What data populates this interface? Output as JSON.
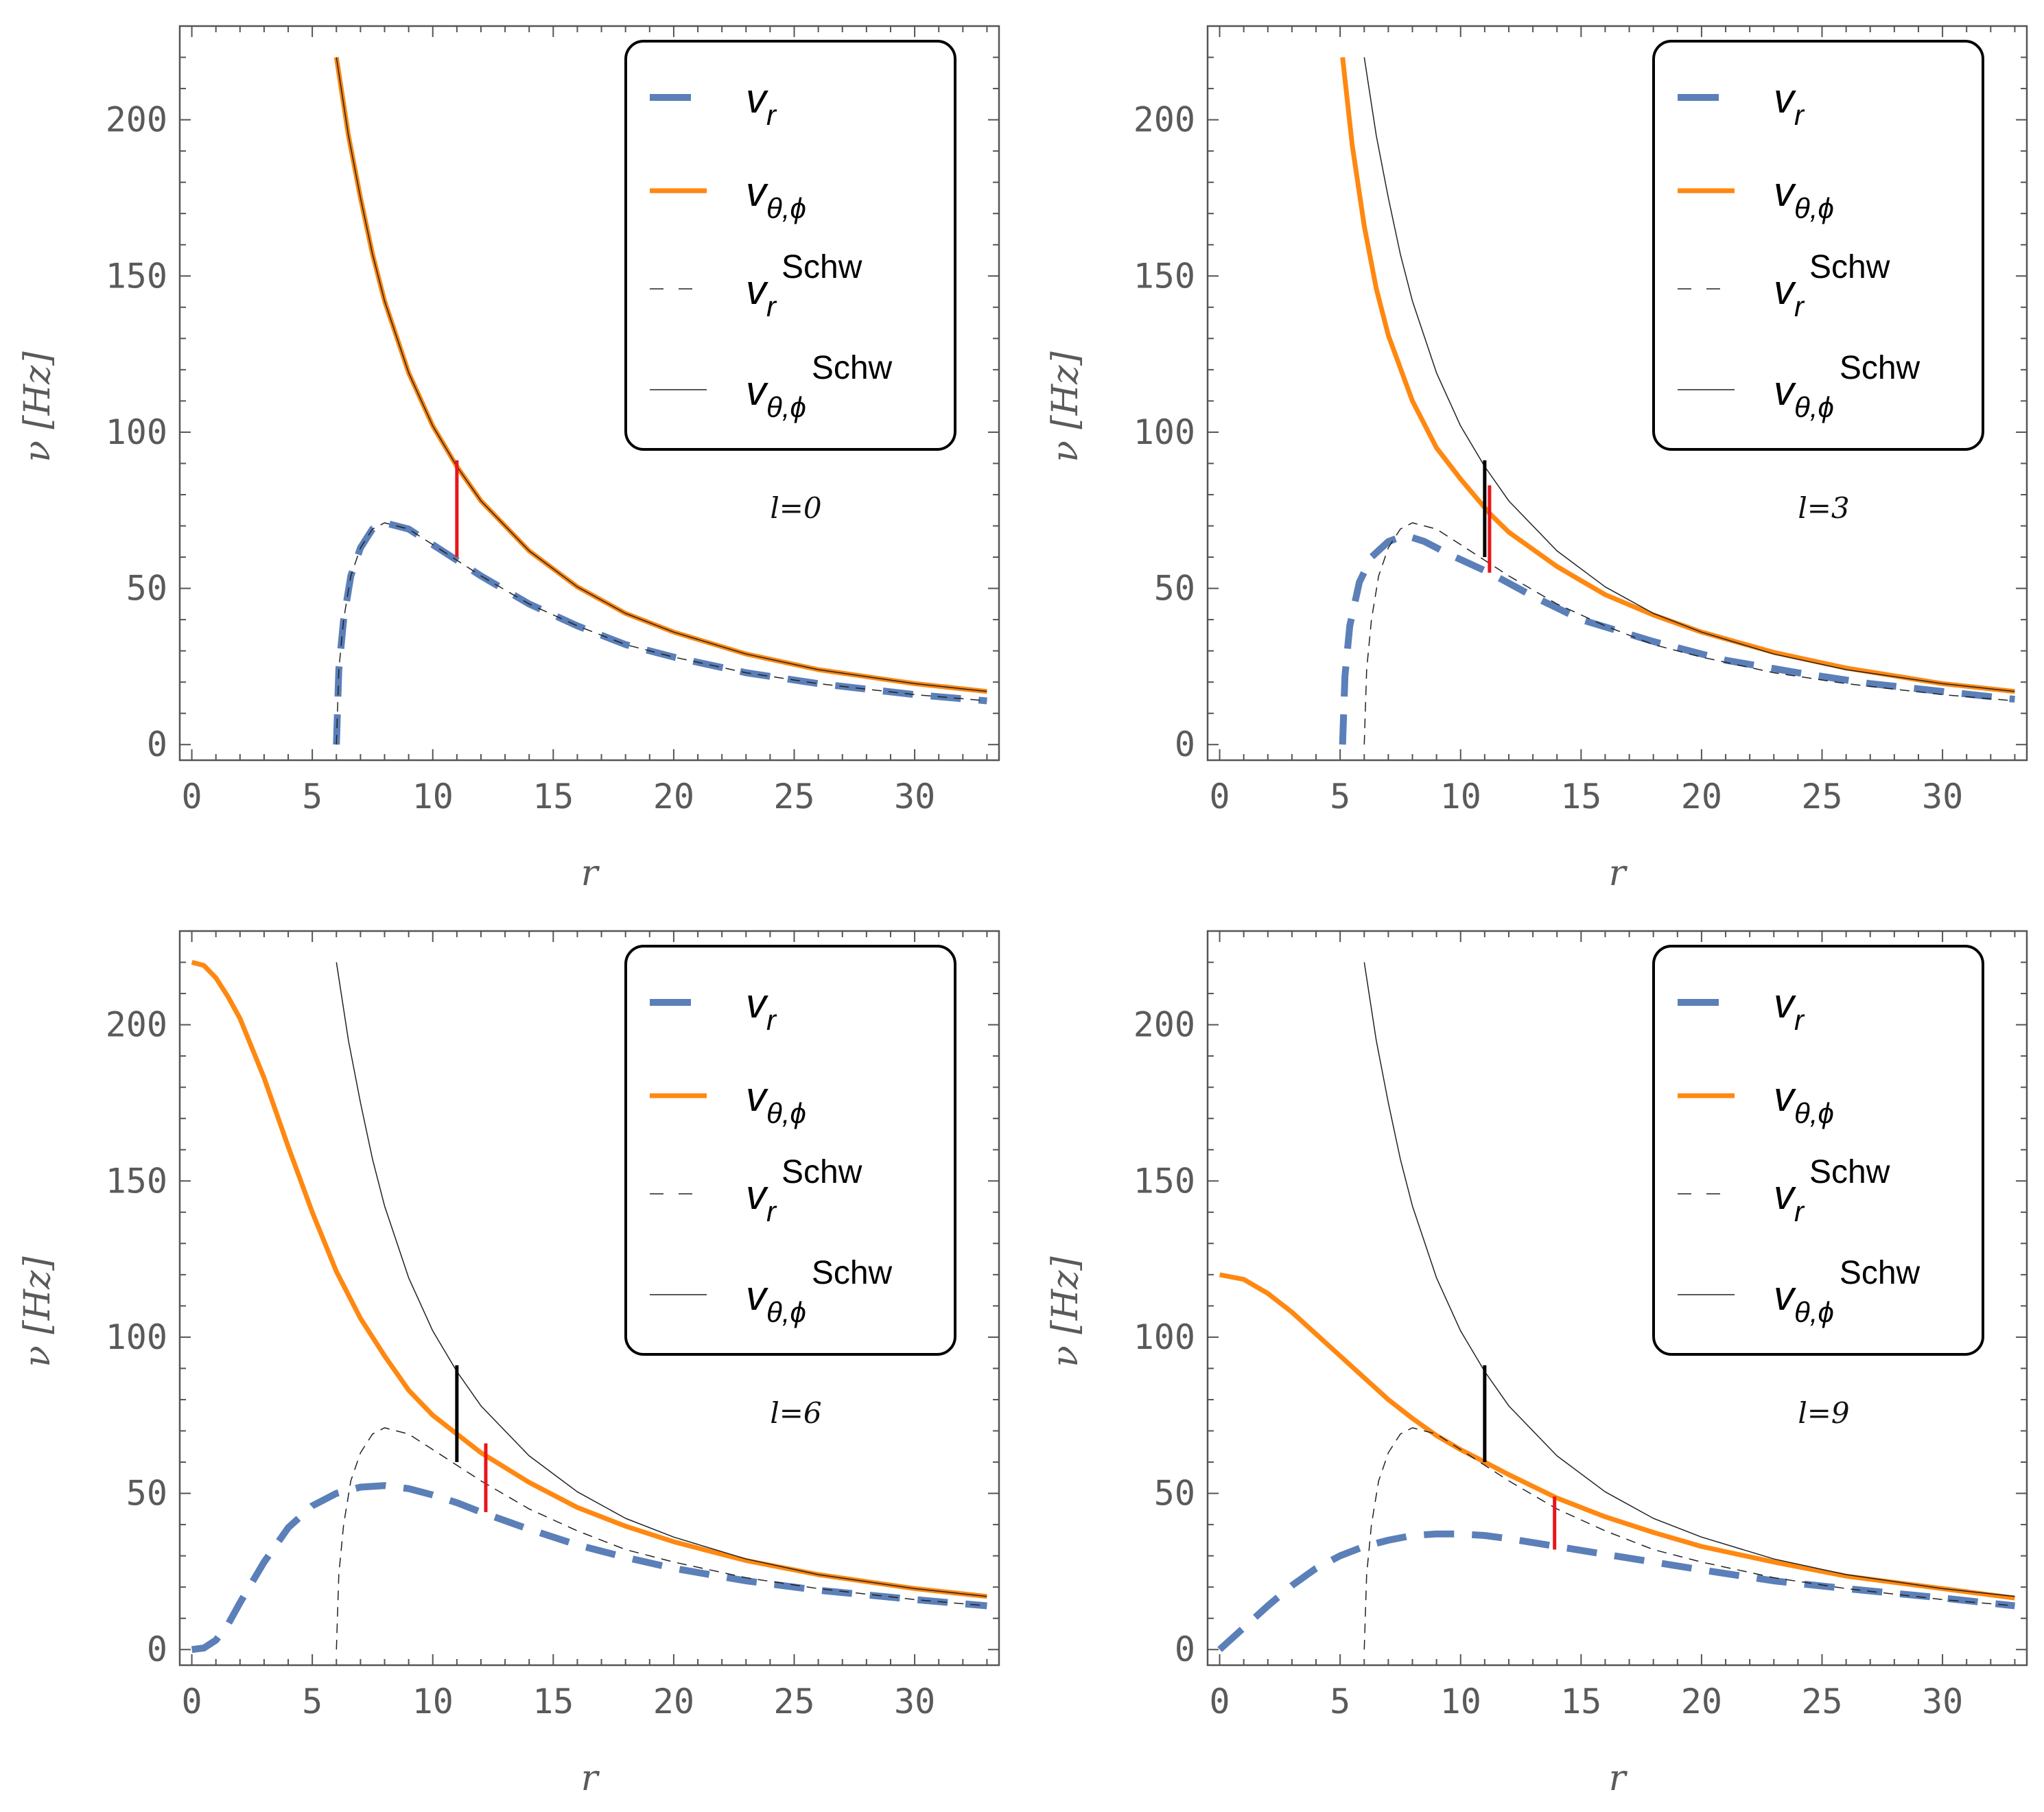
{
  "legend_entries": [
    {
      "symbol": "v",
      "sub": "r",
      "sup": ""
    },
    {
      "symbol": "v",
      "sub": "θ,ϕ",
      "sup": ""
    },
    {
      "symbol": "v",
      "sub": "r",
      "sup": "Schw"
    },
    {
      "symbol": "v",
      "sub": "θ,ϕ",
      "sup": "Schw"
    }
  ],
  "colors": {
    "nu_r": "#5b7fb8",
    "nu_theta_phi": "#ff8811",
    "schw": "#222222",
    "marker_red": "#e8151b",
    "marker_black": "#000000",
    "frame": "#555555"
  },
  "chart_data": [
    {
      "type": "line",
      "panel_label": "l=0",
      "xlabel": "r",
      "ylabel": "ν [Hz]",
      "xlim": [
        -0.5,
        33.5
      ],
      "ylim": [
        -5,
        230
      ],
      "xticks": [
        "0",
        "5",
        "10",
        "15",
        "20",
        "25",
        "30"
      ],
      "yticks": [
        "0",
        "50",
        "100",
        "150",
        "200"
      ],
      "series": [
        {
          "name": "nu_r",
          "style": "thick-dashed",
          "x": [
            6.0,
            6.1,
            6.3,
            6.6,
            7.0,
            7.5,
            8.0,
            9.0,
            10.0,
            11.0,
            12.0,
            14.0,
            16.0,
            18.0,
            20.0,
            23.0,
            26.0,
            30.0,
            33.0
          ],
          "y": [
            0,
            24,
            40,
            54,
            63,
            69,
            71,
            69,
            64,
            59,
            54,
            45,
            38,
            32,
            28,
            23,
            19.5,
            16,
            14
          ]
        },
        {
          "name": "nu_theta_phi",
          "style": "thick-solid",
          "x": [
            6.0,
            6.5,
            7.0,
            7.5,
            8.0,
            9.0,
            10.0,
            11.0,
            12.0,
            14.0,
            16.0,
            18.0,
            20.0,
            23.0,
            26.0,
            30.0,
            33.0
          ],
          "y": [
            220,
            195,
            175,
            157,
            142,
            119,
            102,
            89,
            78,
            62,
            50.5,
            42,
            36,
            29,
            24,
            19.5,
            17
          ]
        },
        {
          "name": "nu_r_schw",
          "style": "thin-dashed",
          "x": [
            6.0,
            6.1,
            6.3,
            6.6,
            7.0,
            7.5,
            8.0,
            9.0,
            10.0,
            11.0,
            12.0,
            14.0,
            16.0,
            18.0,
            20.0,
            23.0,
            26.0,
            30.0,
            33.0
          ],
          "y": [
            0,
            24,
            40,
            54,
            63,
            69,
            71,
            69,
            64,
            59,
            54,
            45,
            38,
            32,
            28,
            23,
            19.5,
            16,
            14
          ]
        },
        {
          "name": "nu_theta_phi_schw",
          "style": "thin-solid",
          "x": [
            6.0,
            6.5,
            7.0,
            7.5,
            8.0,
            9.0,
            10.0,
            11.0,
            12.0,
            14.0,
            16.0,
            18.0,
            20.0,
            23.0,
            26.0,
            30.0,
            33.0
          ],
          "y": [
            220,
            195,
            175,
            157,
            142,
            119,
            102,
            89,
            78,
            62,
            50.5,
            42,
            36,
            29,
            24,
            19.5,
            17
          ]
        }
      ],
      "markers": [
        {
          "color": "red",
          "x": 11.0,
          "y0": 60,
          "y1": 91
        }
      ]
    },
    {
      "type": "line",
      "panel_label": "l=3",
      "xlabel": "r",
      "ylabel": "ν [Hz]",
      "xlim": [
        -0.5,
        33.5
      ],
      "ylim": [
        -5,
        230
      ],
      "xticks": [
        "0",
        "5",
        "10",
        "15",
        "20",
        "25",
        "30"
      ],
      "yticks": [
        "0",
        "50",
        "100",
        "150",
        "200"
      ],
      "series": [
        {
          "name": "nu_r",
          "style": "thick-dashed",
          "x": [
            5.1,
            5.2,
            5.4,
            5.8,
            6.3,
            7.0,
            7.7,
            8.5,
            9.5,
            11.2,
            13.0,
            15.0,
            18.0,
            21.0,
            24.0,
            27.0,
            30.0,
            33.0
          ],
          "y": [
            0,
            22,
            38,
            52,
            60,
            65,
            67,
            65,
            61,
            55,
            47.5,
            40,
            33,
            27,
            23,
            19.5,
            17,
            14.5
          ]
        },
        {
          "name": "nu_theta_phi",
          "style": "thick-solid",
          "x": [
            5.1,
            5.5,
            6.0,
            6.5,
            7.0,
            8.0,
            9.0,
            10.0,
            11.2,
            12.0,
            14.0,
            16.0,
            18.0,
            20.0,
            23.0,
            26.0,
            30.0,
            33.0
          ],
          "y": [
            220,
            192,
            166,
            146,
            131,
            110,
            95,
            85,
            74,
            68,
            57,
            48,
            41.5,
            36,
            29.5,
            24.5,
            19.5,
            17
          ]
        },
        {
          "name": "nu_r_schw",
          "style": "thin-dashed",
          "x": [
            6.0,
            6.1,
            6.3,
            6.6,
            7.0,
            7.5,
            8.0,
            9.0,
            10.0,
            11.0,
            12.0,
            14.0,
            16.0,
            18.0,
            20.0,
            23.0,
            26.0,
            30.0,
            33.0
          ],
          "y": [
            0,
            24,
            40,
            54,
            63,
            69,
            71,
            69,
            64,
            59,
            54,
            45,
            38,
            32,
            28,
            23,
            19.5,
            16,
            14
          ]
        },
        {
          "name": "nu_theta_phi_schw",
          "style": "thin-solid",
          "x": [
            6.0,
            6.5,
            7.0,
            7.5,
            8.0,
            9.0,
            10.0,
            11.0,
            12.0,
            14.0,
            16.0,
            18.0,
            20.0,
            23.0,
            26.0,
            30.0,
            33.0
          ],
          "y": [
            220,
            195,
            175,
            157,
            142,
            119,
            102,
            89,
            78,
            62,
            50.5,
            42,
            36,
            29,
            24,
            19.5,
            17
          ]
        }
      ],
      "markers": [
        {
          "color": "black",
          "x": 11.0,
          "y0": 60,
          "y1": 91
        },
        {
          "color": "red",
          "x": 11.2,
          "y0": 55,
          "y1": 83
        }
      ]
    },
    {
      "type": "line",
      "panel_label": "l=6",
      "xlabel": "r",
      "ylabel": "ν [Hz]",
      "xlim": [
        -0.5,
        33.5
      ],
      "ylim": [
        -5,
        230
      ],
      "xticks": [
        "0",
        "5",
        "10",
        "15",
        "20",
        "25",
        "30"
      ],
      "yticks": [
        "0",
        "50",
        "100",
        "150",
        "200"
      ],
      "series": [
        {
          "name": "nu_r",
          "style": "thick-dashed",
          "x": [
            0,
            0.5,
            1.0,
            1.5,
            2.0,
            3.0,
            4.0,
            5.0,
            6.0,
            7.0,
            8.0,
            9.0,
            10.0,
            11.0,
            12.0,
            14.0,
            16.0,
            18.0,
            20.0,
            23.0,
            26.0,
            30.0,
            33.0
          ],
          "y": [
            0,
            0.5,
            3,
            8,
            15,
            28,
            39,
            46,
            50,
            52,
            52.5,
            51.5,
            49.5,
            47,
            44,
            38.5,
            33.5,
            29.5,
            26,
            22,
            19,
            16,
            14
          ]
        },
        {
          "name": "nu_theta_phi",
          "style": "thick-solid",
          "x": [
            0,
            0.5,
            1.0,
            1.5,
            2.0,
            3.0,
            4.0,
            5.0,
            6.0,
            7.0,
            8.0,
            9.0,
            10.0,
            11.0,
            12.0,
            14.0,
            16.0,
            18.0,
            20.0,
            23.0,
            26.0,
            30.0,
            33.0
          ],
          "y": [
            220,
            219,
            215,
            209,
            202,
            183,
            161,
            140,
            121,
            106,
            94,
            83,
            75,
            69,
            63,
            53.5,
            45.5,
            39.5,
            34.5,
            28.5,
            24,
            19.5,
            17
          ]
        },
        {
          "name": "nu_r_schw",
          "style": "thin-dashed",
          "x": [
            6.0,
            6.1,
            6.3,
            6.6,
            7.0,
            7.5,
            8.0,
            9.0,
            10.0,
            11.0,
            12.0,
            14.0,
            16.0,
            18.0,
            20.0,
            23.0,
            26.0,
            30.0,
            33.0
          ],
          "y": [
            0,
            24,
            40,
            54,
            63,
            69,
            71,
            69,
            64,
            59,
            54,
            45,
            38,
            32,
            28,
            23,
            19.5,
            16,
            14
          ]
        },
        {
          "name": "nu_theta_phi_schw",
          "style": "thin-solid",
          "x": [
            6.0,
            6.5,
            7.0,
            7.5,
            8.0,
            9.0,
            10.0,
            11.0,
            12.0,
            14.0,
            16.0,
            18.0,
            20.0,
            23.0,
            26.0,
            30.0,
            33.0
          ],
          "y": [
            220,
            195,
            175,
            157,
            142,
            119,
            102,
            89,
            78,
            62,
            50.5,
            42,
            36,
            29,
            24,
            19.5,
            17
          ]
        }
      ],
      "markers": [
        {
          "color": "black",
          "x": 11.0,
          "y0": 60,
          "y1": 91
        },
        {
          "color": "red",
          "x": 12.2,
          "y0": 44,
          "y1": 66
        }
      ]
    },
    {
      "type": "line",
      "panel_label": "l=9",
      "xlabel": "r",
      "ylabel": "ν [Hz]",
      "xlim": [
        -0.5,
        33.5
      ],
      "ylim": [
        -5,
        230
      ],
      "xticks": [
        "0",
        "5",
        "10",
        "15",
        "20",
        "25",
        "30"
      ],
      "yticks": [
        "0",
        "50",
        "100",
        "150",
        "200"
      ],
      "series": [
        {
          "name": "nu_r",
          "style": "thick-dashed",
          "x": [
            0,
            1.0,
            2.0,
            3.0,
            4.0,
            5.0,
            6.0,
            7.0,
            8.0,
            9.0,
            10.0,
            11.0,
            12.0,
            14.0,
            16.0,
            18.0,
            20.0,
            23.0,
            26.0,
            30.0,
            33.0
          ],
          "y": [
            0,
            7,
            14,
            20.5,
            26,
            30,
            33,
            35,
            36.5,
            37,
            37,
            36.5,
            35.5,
            33,
            30.5,
            28,
            25.5,
            22,
            19.5,
            16.5,
            14
          ]
        },
        {
          "name": "nu_theta_phi",
          "style": "thick-solid",
          "x": [
            0,
            1.0,
            2.0,
            3.0,
            4.0,
            5.0,
            6.0,
            7.0,
            8.0,
            9.0,
            10.0,
            11.0,
            12.0,
            14.0,
            16.0,
            18.0,
            20.0,
            23.0,
            26.0,
            30.0,
            33.0
          ],
          "y": [
            120,
            118.5,
            114,
            108,
            101,
            94,
            87,
            80,
            74,
            68.5,
            64,
            60,
            56,
            48.5,
            42.5,
            37.5,
            33,
            28,
            23.5,
            19.5,
            16.5
          ]
        },
        {
          "name": "nu_r_schw",
          "style": "thin-dashed",
          "x": [
            6.0,
            6.1,
            6.3,
            6.6,
            7.0,
            7.5,
            8.0,
            9.0,
            10.0,
            11.0,
            12.0,
            14.0,
            16.0,
            18.0,
            20.0,
            23.0,
            26.0,
            30.0,
            33.0
          ],
          "y": [
            0,
            24,
            40,
            54,
            63,
            69,
            71,
            69,
            64,
            59,
            54,
            45,
            38,
            32,
            28,
            23,
            19.5,
            16,
            14
          ]
        },
        {
          "name": "nu_theta_phi_schw",
          "style": "thin-solid",
          "x": [
            6.0,
            6.5,
            7.0,
            7.5,
            8.0,
            9.0,
            10.0,
            11.0,
            12.0,
            14.0,
            16.0,
            18.0,
            20.0,
            23.0,
            26.0,
            30.0,
            33.0
          ],
          "y": [
            220,
            195,
            175,
            157,
            142,
            119,
            102,
            89,
            78,
            62,
            50.5,
            42,
            36,
            29,
            24,
            19.5,
            17
          ]
        }
      ],
      "markers": [
        {
          "color": "black",
          "x": 11.0,
          "y0": 60,
          "y1": 91
        },
        {
          "color": "red",
          "x": 13.9,
          "y0": 32,
          "y1": 49
        }
      ]
    }
  ]
}
